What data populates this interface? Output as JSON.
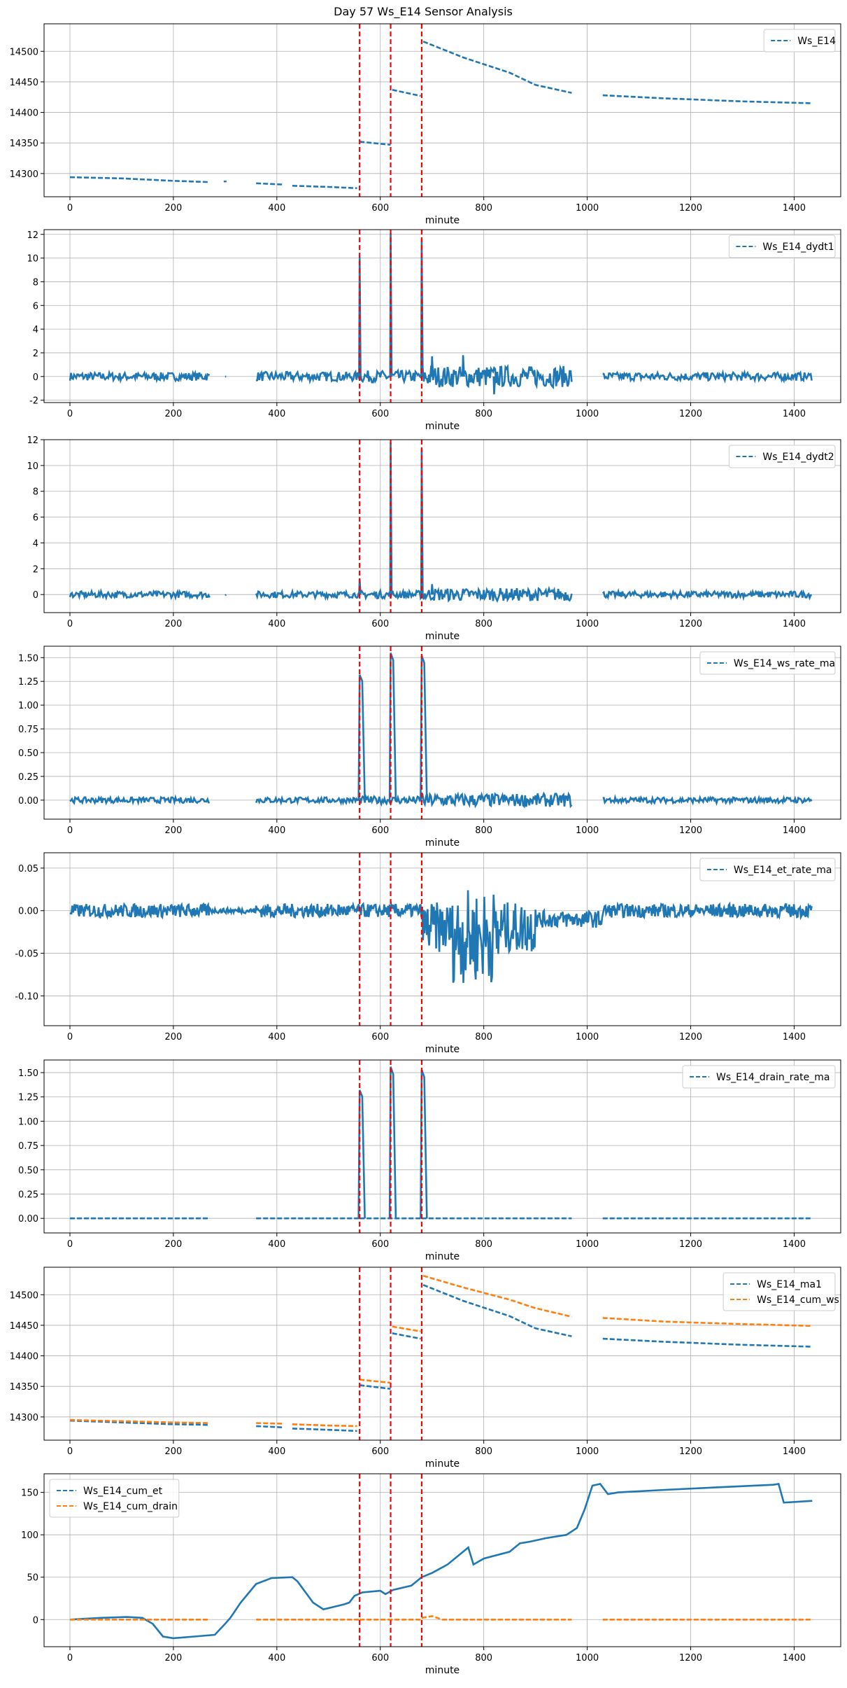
{
  "title": "Day 57 Ws_E14 Sensor Analysis",
  "chart_data": [
    {
      "type": "line",
      "xlabel": "minute",
      "xlim": [
        -50,
        1490
      ],
      "ylim": [
        14262,
        14545
      ],
      "yticks": [
        14300,
        14350,
        14400,
        14450,
        14500
      ],
      "xticks": [
        0,
        200,
        400,
        600,
        800,
        1000,
        1200,
        1400
      ],
      "legend": "top-right",
      "vlines": [
        560,
        620,
        680
      ],
      "series": [
        {
          "name": "Ws_E14",
          "color": "#1f77b4",
          "segments": [
            [
              [
                0,
                14294
              ],
              [
                100,
                14292
              ],
              [
                200,
                14288
              ],
              [
                270,
                14286
              ]
            ],
            [
              [
                300,
                14287
              ]
            ],
            [
              [
                360,
                14284
              ],
              [
                410,
                14282
              ]
            ],
            [
              [
                430,
                14280
              ],
              [
                500,
                14278
              ],
              [
                555,
                14276
              ]
            ],
            [
              [
                560,
                14352
              ],
              [
                620,
                14347
              ]
            ],
            [
              [
                623,
                14437
              ],
              [
                678,
                14427
              ]
            ],
            [
              [
                683,
                14516
              ],
              [
                760,
                14490
              ],
              [
                850,
                14465
              ],
              [
                900,
                14445
              ],
              [
                970,
                14432
              ]
            ],
            [
              [
                1030,
                14428
              ],
              [
                1150,
                14423
              ],
              [
                1300,
                14418
              ],
              [
                1435,
                14415
              ]
            ]
          ]
        }
      ]
    },
    {
      "type": "line",
      "xlabel": "minute",
      "xlim": [
        -50,
        1490
      ],
      "ylim": [
        -2.2,
        12.4
      ],
      "yticks": [
        -2,
        0,
        2,
        4,
        6,
        8,
        10,
        12
      ],
      "yticklabels": [
        "-2",
        "0",
        "2",
        "4",
        "6",
        "8",
        "10",
        "12"
      ],
      "xticks": [
        0,
        200,
        400,
        600,
        800,
        1000,
        1200,
        1400
      ],
      "legend": "top-right",
      "vlines": [
        560,
        620,
        680
      ],
      "series": [
        {
          "name": "Ws_E14_dydt1",
          "color": "#1f77b4",
          "spikes": [
            [
              560,
              10.1
            ],
            [
              620,
              12.1
            ],
            [
              680,
              11.6
            ],
            [
              700,
              1.7
            ],
            [
              760,
              1.8
            ],
            [
              820,
              -1.5
            ]
          ],
          "noise": [
            [
              0,
              270,
              0.35
            ],
            [
              300,
              300,
              0.2
            ],
            [
              360,
              560,
              0.4
            ],
            [
              560,
              680,
              0.5
            ],
            [
              680,
              970,
              0.9
            ],
            [
              1030,
              1435,
              0.35
            ]
          ]
        }
      ]
    },
    {
      "type": "line",
      "xlabel": "minute",
      "xlim": [
        -50,
        1490
      ],
      "ylim": [
        -1.4,
        12.0
      ],
      "yticks": [
        0,
        2,
        4,
        6,
        8,
        10,
        12
      ],
      "yticklabels": [
        "0",
        "2",
        "4",
        "6",
        "8",
        "10",
        "12"
      ],
      "xticks": [
        0,
        200,
        400,
        600,
        800,
        1000,
        1200,
        1400
      ],
      "legend": "top-right",
      "vlines": [
        560,
        620,
        680
      ],
      "series": [
        {
          "name": "Ws_E14_dydt2",
          "color": "#1f77b4",
          "spikes": [
            [
              560,
              1.2
            ],
            [
              620,
              11.8
            ],
            [
              680,
              11.3
            ],
            [
              700,
              0.8
            ]
          ],
          "noise": [
            [
              0,
              270,
              0.25
            ],
            [
              300,
              300,
              0.15
            ],
            [
              360,
              560,
              0.25
            ],
            [
              560,
              680,
              0.3
            ],
            [
              680,
              970,
              0.5
            ],
            [
              1030,
              1435,
              0.25
            ]
          ]
        }
      ]
    },
    {
      "type": "line",
      "xlabel": "minute",
      "xlim": [
        -50,
        1490
      ],
      "ylim": [
        -0.2,
        1.62
      ],
      "yticks": [
        0.0,
        0.25,
        0.5,
        0.75,
        1.0,
        1.25,
        1.5
      ],
      "yticklabels": [
        "0.00",
        "0.25",
        "0.50",
        "0.75",
        "1.00",
        "1.25",
        "1.50"
      ],
      "xticks": [
        0,
        200,
        400,
        600,
        800,
        1000,
        1200,
        1400
      ],
      "legend": "top-right",
      "vlines": [
        560,
        620,
        680
      ],
      "series": [
        {
          "name": "Ws_E14_ws_rate_ma",
          "color": "#1f77b4",
          "pulses": [
            [
              560,
              1.32
            ],
            [
              620,
              1.55
            ],
            [
              680,
              1.52
            ]
          ],
          "noise": [
            [
              0,
              270,
              0.03
            ],
            [
              360,
              560,
              0.03
            ],
            [
              560,
              680,
              0.04
            ],
            [
              680,
              970,
              0.07
            ],
            [
              1030,
              1435,
              0.03
            ]
          ]
        }
      ]
    },
    {
      "type": "line",
      "xlabel": "minute",
      "xlim": [
        -50,
        1490
      ],
      "ylim": [
        -0.135,
        0.068
      ],
      "yticks": [
        -0.1,
        -0.05,
        0.0,
        0.05
      ],
      "yticklabels": [
        "-0.10",
        "-0.05",
        "0.00",
        "0.05"
      ],
      "xticks": [
        0,
        200,
        400,
        600,
        800,
        1000,
        1200,
        1400
      ],
      "legend": "top-right",
      "vlines": [
        560,
        620,
        680
      ],
      "series": [
        {
          "name": "Ws_E14_et_rate_ma",
          "color": "#1f77b4",
          "dense": true
        }
      ]
    },
    {
      "type": "line",
      "xlabel": "minute",
      "xlim": [
        -50,
        1490
      ],
      "ylim": [
        -0.15,
        1.63
      ],
      "yticks": [
        0.0,
        0.25,
        0.5,
        0.75,
        1.0,
        1.25,
        1.5
      ],
      "yticklabels": [
        "0.00",
        "0.25",
        "0.50",
        "0.75",
        "1.00",
        "1.25",
        "1.50"
      ],
      "xticks": [
        0,
        200,
        400,
        600,
        800,
        1000,
        1200,
        1400
      ],
      "legend": "top-right",
      "vlines": [
        560,
        620,
        680
      ],
      "series": [
        {
          "name": "Ws_E14_drain_rate_ma",
          "color": "#1f77b4",
          "pulses": [
            [
              560,
              1.32
            ],
            [
              620,
              1.56
            ],
            [
              680,
              1.53
            ]
          ],
          "flat": [
            [
              0,
              270
            ],
            [
              360,
              560
            ],
            [
              560,
              680
            ],
            [
              680,
              970
            ],
            [
              1030,
              1435
            ]
          ]
        }
      ]
    },
    {
      "type": "line",
      "xlabel": "minute",
      "xlim": [
        -50,
        1490
      ],
      "ylim": [
        14262,
        14545
      ],
      "yticks": [
        14300,
        14350,
        14400,
        14450,
        14500
      ],
      "xticks": [
        0,
        200,
        400,
        600,
        800,
        1000,
        1200,
        1400
      ],
      "legend": "top-right",
      "vlines": [
        560,
        620,
        680
      ],
      "series": [
        {
          "name": "Ws_E14_ma1",
          "color": "#1f77b4",
          "segments": [
            [
              [
                0,
                14294
              ],
              [
                100,
                14291
              ],
              [
                200,
                14288
              ],
              [
                270,
                14287
              ]
            ],
            [
              [
                360,
                14285
              ],
              [
                410,
                14283
              ]
            ],
            [
              [
                430,
                14281
              ],
              [
                500,
                14279
              ],
              [
                555,
                14277
              ]
            ],
            [
              [
                560,
                14352
              ],
              [
                620,
                14346
              ]
            ],
            [
              [
                623,
                14437
              ],
              [
                678,
                14428
              ]
            ],
            [
              [
                683,
                14516
              ],
              [
                760,
                14490
              ],
              [
                850,
                14465
              ],
              [
                900,
                14445
              ],
              [
                970,
                14432
              ]
            ],
            [
              [
                1030,
                14428
              ],
              [
                1150,
                14423
              ],
              [
                1300,
                14418
              ],
              [
                1435,
                14415
              ]
            ]
          ]
        },
        {
          "name": "Ws_E14_cum_ws",
          "color": "#ff7f0e",
          "segments": [
            [
              [
                0,
                14295
              ],
              [
                100,
                14293
              ],
              [
                200,
                14291
              ],
              [
                270,
                14290
              ]
            ],
            [
              [
                360,
                14290
              ],
              [
                410,
                14289
              ]
            ],
            [
              [
                430,
                14288
              ],
              [
                500,
                14286
              ],
              [
                555,
                14285
              ]
            ],
            [
              [
                560,
                14361
              ],
              [
                620,
                14356
              ]
            ],
            [
              [
                623,
                14448
              ],
              [
                678,
                14440
              ]
            ],
            [
              [
                683,
                14531
              ],
              [
                760,
                14512
              ],
              [
                850,
                14492
              ],
              [
                900,
                14478
              ],
              [
                970,
                14464
              ]
            ],
            [
              [
                1030,
                14462
              ],
              [
                1150,
                14456
              ],
              [
                1300,
                14452
              ],
              [
                1435,
                14449
              ]
            ]
          ]
        }
      ]
    },
    {
      "type": "line",
      "xlabel": "minute",
      "xlim": [
        -50,
        1490
      ],
      "ylim": [
        -32,
        172
      ],
      "yticks": [
        0,
        50,
        100,
        150
      ],
      "yticklabels": [
        "0",
        "50",
        "100",
        "150"
      ],
      "xticks": [
        0,
        200,
        400,
        600,
        800,
        1000,
        1200,
        1400
      ],
      "legend": "top-left",
      "vlines": [
        560,
        620,
        680
      ],
      "series": [
        {
          "name": "Ws_E14_cum_et",
          "color": "#1f77b4",
          "segments": [
            [
              [
                0,
                0
              ],
              [
                60,
                2
              ],
              [
                110,
                3
              ],
              [
                140,
                2
              ],
              [
                160,
                -5
              ],
              [
                180,
                -20
              ],
              [
                200,
                -22
              ],
              [
                240,
                -20
              ],
              [
                280,
                -18
              ],
              [
                300,
                -5
              ],
              [
                310,
                2
              ],
              [
                330,
                20
              ],
              [
                360,
                42
              ],
              [
                390,
                49
              ],
              [
                430,
                50
              ],
              [
                440,
                45
              ],
              [
                470,
                20
              ],
              [
                490,
                12
              ],
              [
                510,
                15
              ],
              [
                530,
                18
              ],
              [
                540,
                20
              ],
              [
                550,
                28
              ],
              [
                565,
                32
              ],
              [
                600,
                34
              ],
              [
                610,
                30
              ],
              [
                625,
                35
              ],
              [
                660,
                40
              ],
              [
                680,
                50
              ],
              [
                700,
                55
              ],
              [
                730,
                65
              ],
              [
                760,
                80
              ],
              [
                770,
                85
              ],
              [
                780,
                65
              ],
              [
                800,
                72
              ],
              [
                850,
                80
              ],
              [
                870,
                90
              ],
              [
                890,
                92
              ],
              [
                920,
                96
              ],
              [
                960,
                100
              ],
              [
                980,
                108
              ],
              [
                995,
                130
              ],
              [
                1010,
                158
              ],
              [
                1025,
                160
              ],
              [
                1040,
                148
              ],
              [
                1060,
                150
              ],
              [
                1150,
                153
              ],
              [
                1250,
                156
              ],
              [
                1360,
                159
              ],
              [
                1370,
                160
              ],
              [
                1380,
                138
              ],
              [
                1435,
                140
              ]
            ]
          ]
        },
        {
          "name": "Ws_E14_cum_drain",
          "color": "#ff7f0e",
          "segments": [
            [
              [
                0,
                0
              ],
              [
                270,
                0
              ]
            ],
            [
              [
                360,
                0
              ],
              [
                560,
                0
              ]
            ],
            [
              [
                560,
                0
              ],
              [
                680,
                0
              ]
            ],
            [
              [
                680,
                2
              ],
              [
                700,
                4
              ],
              [
                720,
                0
              ],
              [
                970,
                0
              ]
            ],
            [
              [
                1030,
                0
              ],
              [
                1435,
                0
              ]
            ]
          ]
        }
      ]
    }
  ]
}
